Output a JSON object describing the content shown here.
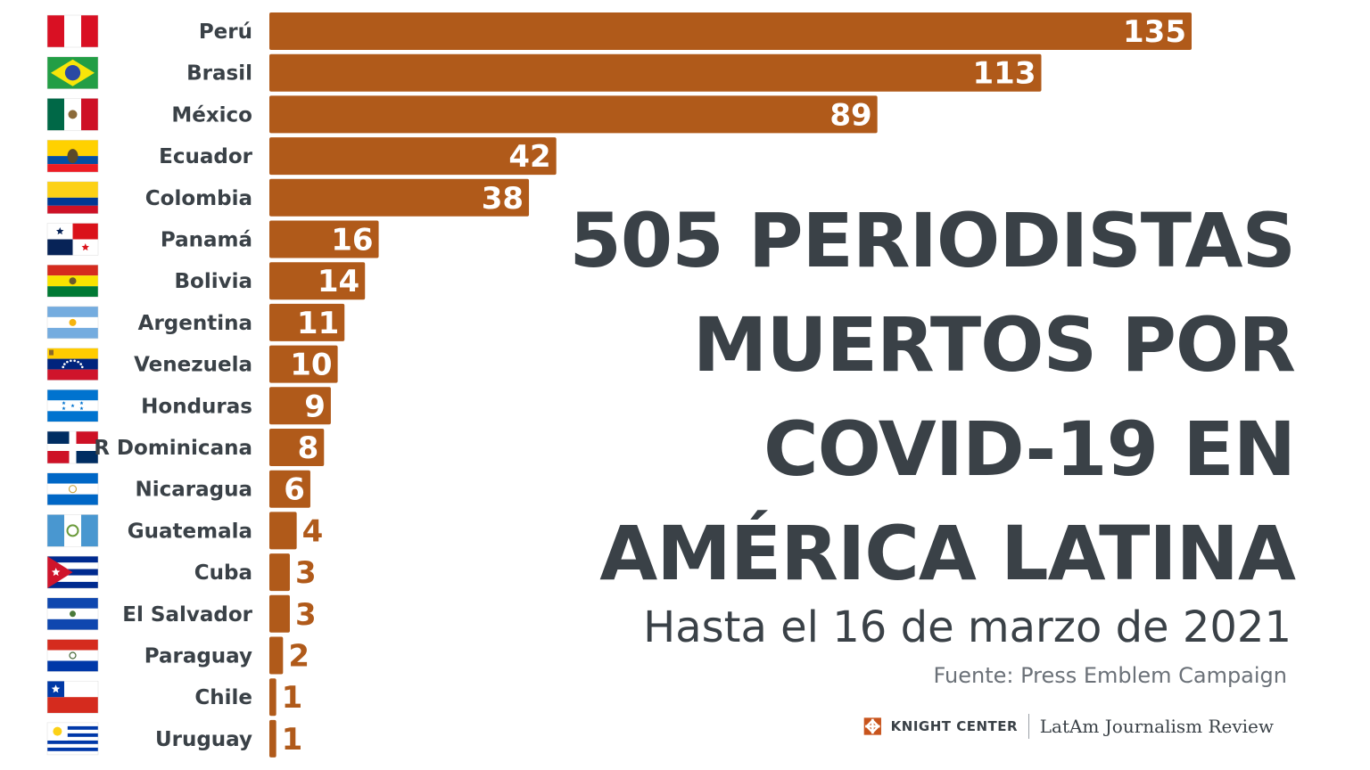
{
  "chart_data": {
    "type": "bar",
    "orientation": "horizontal",
    "categories": [
      "Perú",
      "Brasil",
      "México",
      "Ecuador",
      "Colombia",
      "Panamá",
      "Bolivia",
      "Argentina",
      "Venezuela",
      "Honduras",
      "R Dominicana",
      "Nicaragua",
      "Guatemala",
      "Cuba",
      "El Salvador",
      "Paraguay",
      "Chile",
      "Uruguay"
    ],
    "values": [
      135,
      113,
      89,
      42,
      38,
      16,
      14,
      11,
      10,
      9,
      8,
      6,
      4,
      3,
      3,
      2,
      1,
      1
    ],
    "flags": [
      "peru-flag",
      "brazil-flag",
      "mexico-flag",
      "ecuador-flag",
      "colombia-flag",
      "panama-flag",
      "bolivia-flag",
      "argentina-flag",
      "venezuela-flag",
      "honduras-flag",
      "dominican-republic-flag",
      "nicaragua-flag",
      "guatemala-flag",
      "cuba-flag",
      "el-salvador-flag",
      "paraguay-flag",
      "chile-flag",
      "uruguay-flag"
    ],
    "title_lines": [
      "505 PERIODISTAS",
      "MUERTOS POR",
      "COVID-19 EN",
      "AMÉRICA LATINA"
    ],
    "subtitle": "Hasta el 16 de marzo de 2021",
    "source": "Fuente: Press Emblem Campaign",
    "xlim": [
      0,
      135
    ],
    "grid": false,
    "bar_color": "#b05a1a",
    "value_label_inside_color": "#ffffff",
    "value_label_outside_color": "#b05a1a"
  },
  "branding": {
    "knight_center": "KNIGHT CENTER",
    "latam_review": "LatAm Journalism Review",
    "logo_icon": "knight-center-logo-icon",
    "logo_color": "#c8541c"
  }
}
